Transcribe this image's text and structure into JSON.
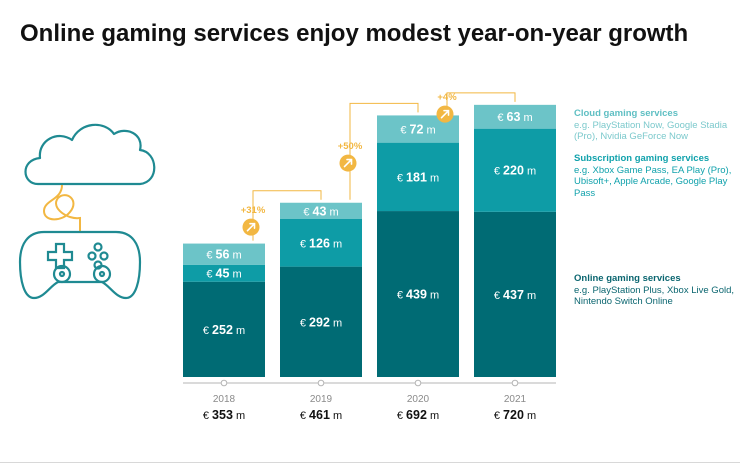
{
  "title": "Online gaming services enjoy modest year-on-year growth",
  "colors": {
    "cloud": "#6cc4c8",
    "subscription": "#0e9ca6",
    "online": "#006b74",
    "growth": "#f2b742",
    "axis": "#b5b5b5",
    "icon": "#1f8a92",
    "icon_cable": "#f2b742"
  },
  "icons": [
    "cloud-icon",
    "cable-icon",
    "gamepad-icon",
    "growth-arrow-icon"
  ],
  "legend": [
    {
      "key": "cloud",
      "title": "Cloud gaming services",
      "desc": "e.g. PlayStation Now, Google Stadia (Pro), Nvidia GeForce Now"
    },
    {
      "key": "subscription",
      "title": "Subscription gaming services",
      "desc": "e.g. Xbox Game Pass, EA Play (Pro), Ubisoft+, Apple Arcade, Google Play Pass"
    },
    {
      "key": "online",
      "title": "Online gaming services",
      "desc": "e.g. PlayStation Plus, Xbox Live Gold, Nintendo Switch Online"
    }
  ],
  "chart_data": {
    "type": "bar",
    "stacked": true,
    "unit_prefix": "€",
    "unit_suffix": "m",
    "categories": [
      "2018",
      "2019",
      "2020",
      "2021"
    ],
    "series": [
      {
        "key": "online",
        "name": "Online gaming services",
        "values": [
          252,
          292,
          439,
          437
        ]
      },
      {
        "key": "subscription",
        "name": "Subscription gaming services",
        "values": [
          45,
          126,
          181,
          220
        ]
      },
      {
        "key": "cloud",
        "name": "Cloud gaming services",
        "values": [
          56,
          43,
          72,
          63
        ]
      }
    ],
    "totals": [
      353,
      461,
      692,
      720
    ],
    "growth": [
      "",
      "+31%",
      "+50%",
      "+4%"
    ],
    "ylim": [
      0,
      750
    ],
    "grid": false,
    "legend_position": "right"
  }
}
